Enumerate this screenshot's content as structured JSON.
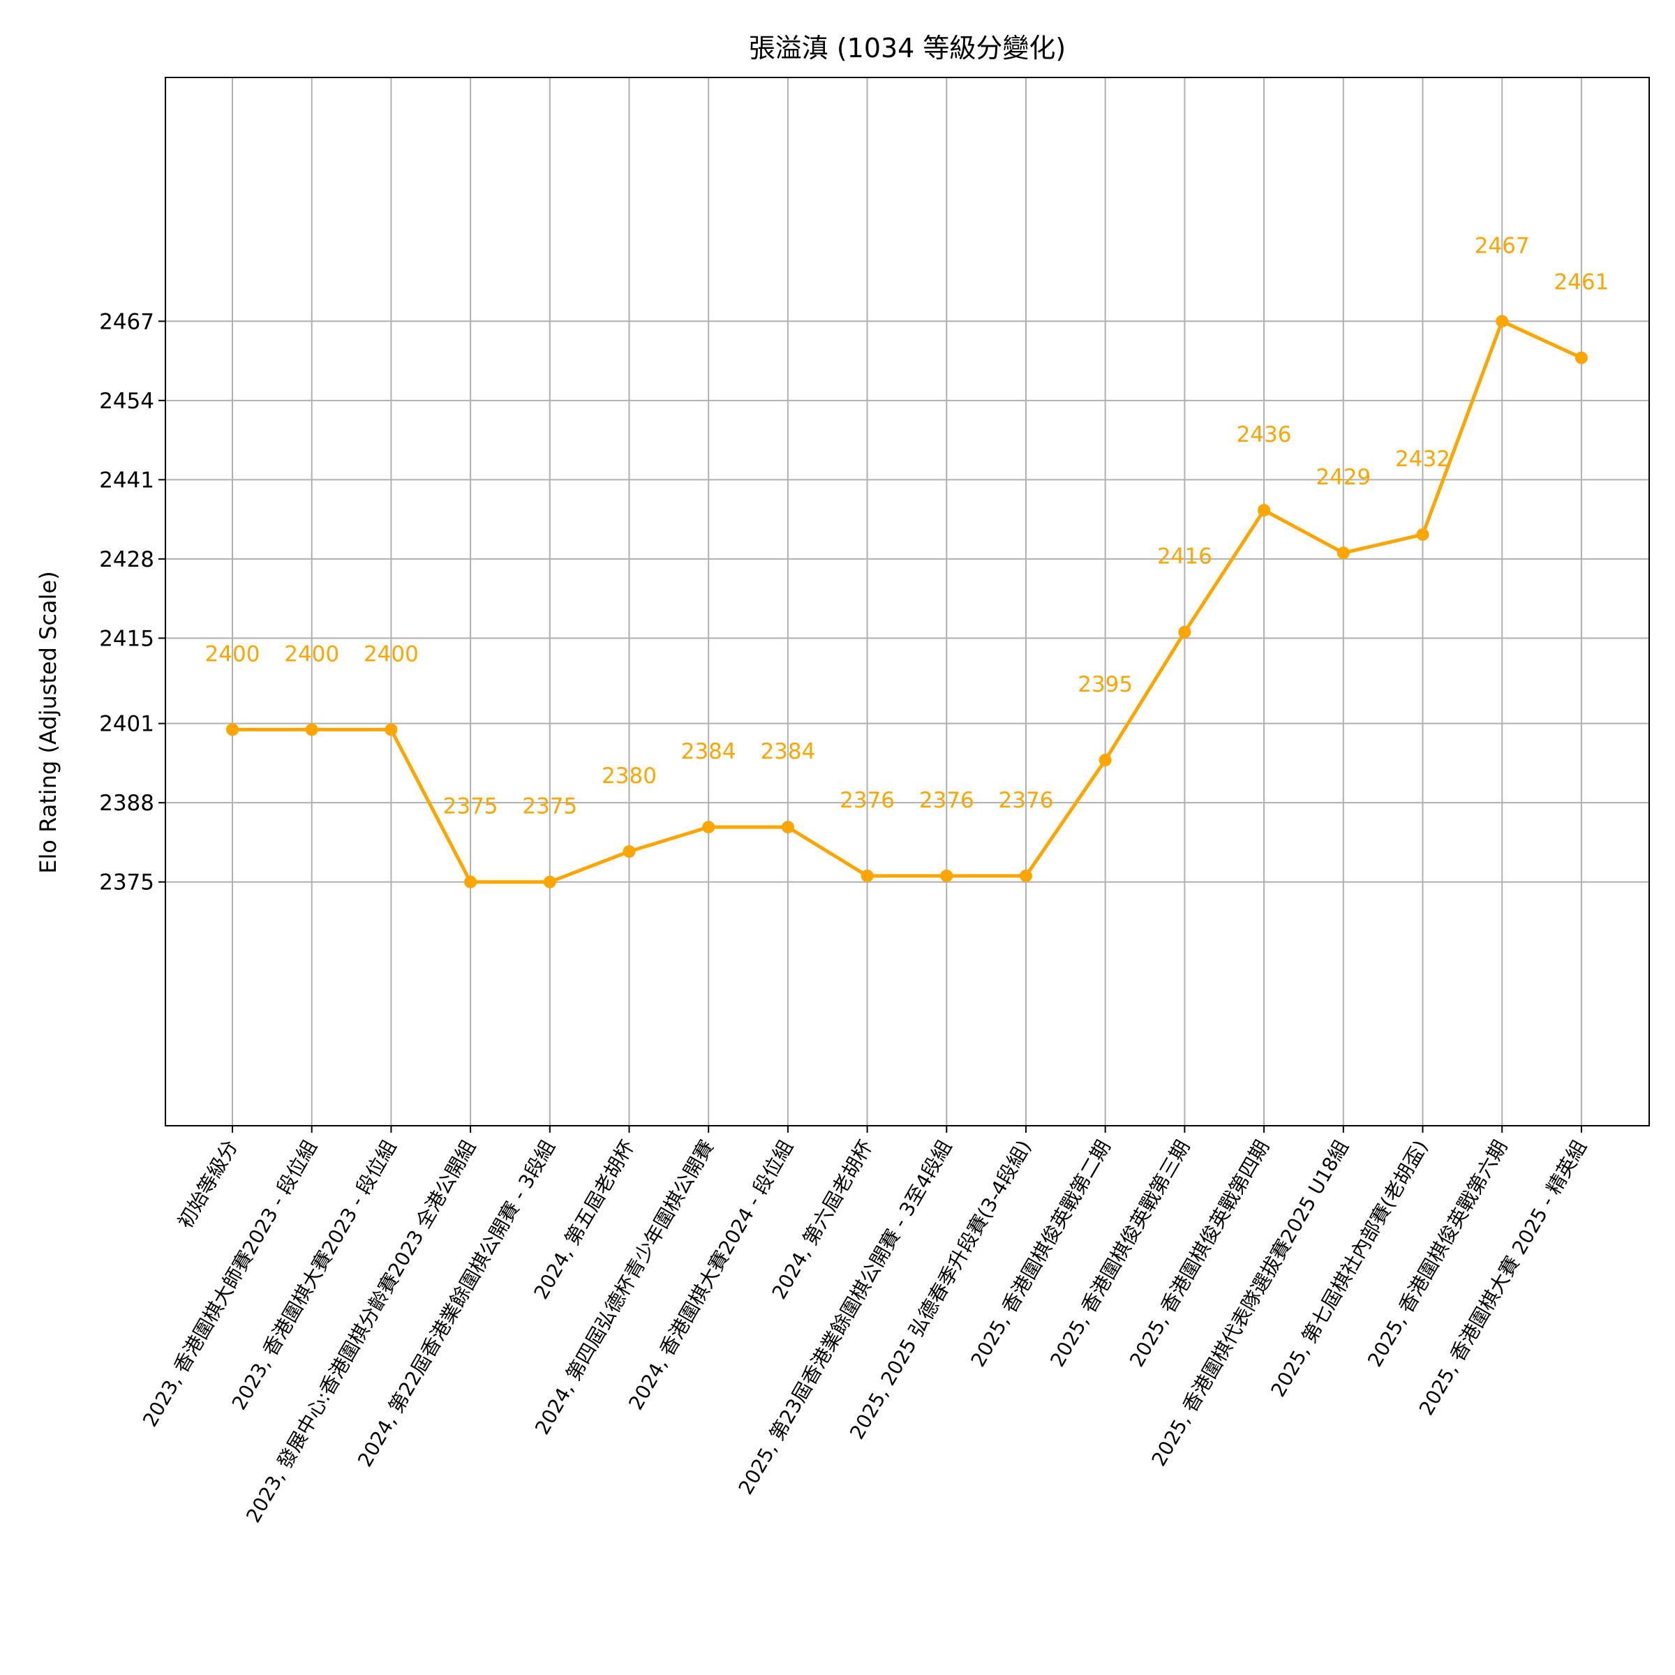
{
  "colors": {
    "series": "#FFA500",
    "grid": "#b0b0b0",
    "axis": "#000000"
  },
  "chart_data": {
    "type": "line",
    "title": "張溢滇 (1034 等級分變化)",
    "xlabel": "",
    "ylabel": "Elo Rating (Adjusted Scale)",
    "ylim": [
      2335,
      2507
    ],
    "yticks": [
      2375,
      2388,
      2401,
      2415,
      2428,
      2441,
      2454,
      2467
    ],
    "grid": true,
    "categories": [
      "初始等級分",
      "2023, 香港圍棋大師賽2023 - 段位組",
      "2023, 香港圍棋大賽2023 - 段位組",
      "2023, 發展中心:香港圍棋分齡賽2023 全港公開組",
      "2024, 第22屆香港業餘圍棋公開賽 - 3段組",
      "2024, 第五屆老胡杯",
      "2024, 第四屆弘德杯青少年圍棋公開賽",
      "2024, 香港圍棋大賽2024 - 段位組",
      "2024, 第六屆老胡杯",
      "2025, 第23屆香港業餘圍棋公開賽 - 3至4段組",
      "2025, 2025 弘德春季升段賽(3-4段組)",
      "2025, 香港圍棋俊英戰第二期",
      "2025, 香港圍棋俊英戰第三期",
      "2025, 香港圍棋俊英戰第四期",
      "2025, 香港圍棋代表隊選拔賽2025 U18組",
      "2025, 第七屆棋社內部賽(老胡盃)",
      "2025, 香港圍棋俊英戰第六期",
      "2025, 香港圍棋大賽 2025 - 精英組"
    ],
    "values": [
      2400,
      2400,
      2400,
      2375,
      2375,
      2380,
      2384,
      2384,
      2376,
      2376,
      2376,
      2395,
      2416,
      2436,
      2429,
      2432,
      2467,
      2461
    ],
    "data_labels": [
      "2400",
      "2400",
      "2400",
      "2375",
      "2375",
      "2380",
      "2384",
      "2384",
      "2376",
      "2376",
      "2376",
      "2395",
      "2416",
      "2436",
      "2429",
      "2432",
      "2467",
      "2461"
    ]
  }
}
